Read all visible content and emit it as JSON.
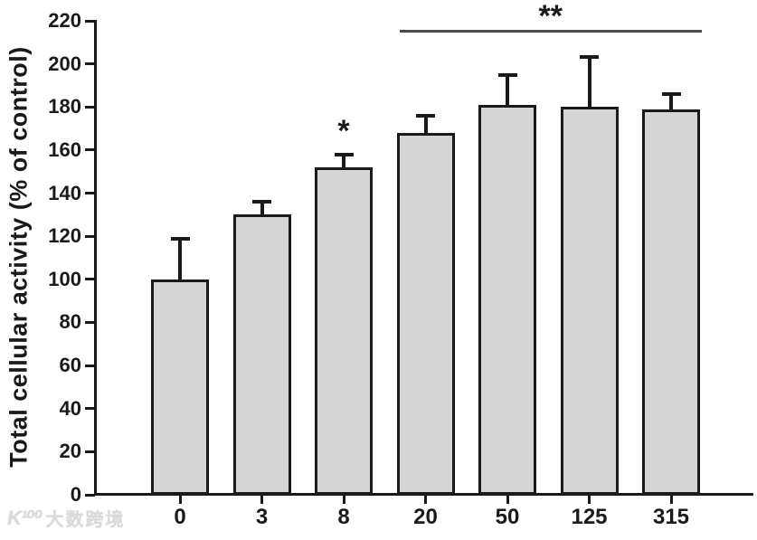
{
  "chart_data": {
    "type": "bar",
    "title": "",
    "xlabel": "",
    "ylabel": "Total cellular activity (% of control)",
    "categories": [
      "0",
      "3",
      "8",
      "20",
      "50",
      "125",
      "315"
    ],
    "values": [
      100,
      130,
      152,
      168,
      181,
      180,
      179
    ],
    "errors_plus": [
      19,
      6,
      6,
      8,
      14,
      23,
      7
    ],
    "ylim": [
      0,
      220
    ],
    "ytick_step": 20,
    "grid": false,
    "legend": null,
    "bar_fill": "#d5d5d5",
    "bar_border": "#1a1a1a",
    "annotations": [
      {
        "type": "asterisk",
        "label": "*",
        "category": "8"
      },
      {
        "type": "line_bracket",
        "label": "**",
        "from_category": "20",
        "to_category": "315"
      }
    ]
  },
  "watermark": {
    "logo": "K¹⁰⁰",
    "text": "大数跨境"
  }
}
